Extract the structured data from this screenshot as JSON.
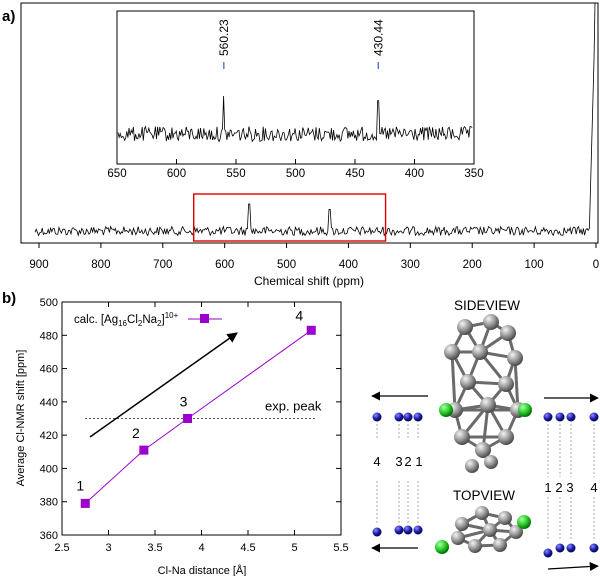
{
  "panel_labels": {
    "a": "a)",
    "b": "b)"
  },
  "chart_data": [
    {
      "id": "spectrum_a",
      "type": "line",
      "title": "",
      "xlabel": "Chemical shift (ppm)",
      "ylabel": "",
      "xlim": [
        900,
        0
      ],
      "x_ticks": [
        900,
        800,
        700,
        600,
        500,
        400,
        300,
        200,
        100,
        0
      ],
      "highlight_range_ppm": [
        650,
        340
      ],
      "peaks": [
        {
          "x": 560.23,
          "relative_height": 1.0
        },
        {
          "x": 430.44,
          "relative_height": 0.9
        }
      ],
      "note": "noisy NMR spectrum; steep rise near 0 ppm",
      "inset": {
        "xlim": [
          650,
          350
        ],
        "x_ticks": [
          650,
          600,
          550,
          500,
          450,
          400,
          350
        ],
        "peak_labels": [
          {
            "x": 560.23,
            "label": "560.23"
          },
          {
            "x": 430.44,
            "label": "430.44"
          }
        ]
      }
    },
    {
      "id": "plot_b",
      "type": "line",
      "xlabel": "Cl-Na distance [Å]",
      "ylabel": "Average Cl-NMR shift [ppm]",
      "xlim": [
        2.5,
        5.5
      ],
      "ylim": [
        360,
        500
      ],
      "x_ticks": [
        2.5,
        3,
        3.5,
        4,
        4.5,
        5,
        5.5
      ],
      "y_ticks": [
        360,
        380,
        400,
        420,
        440,
        460,
        480,
        500
      ],
      "series": [
        {
          "name": "calc. [Ag16Cl2Na2]10+",
          "color": "#9b00cc",
          "x": [
            2.75,
            3.38,
            3.85,
            5.18
          ],
          "y": [
            379,
            411,
            430,
            483
          ],
          "point_labels": [
            "1",
            "2",
            "3",
            "4"
          ]
        }
      ],
      "reference_line": {
        "y": 430,
        "label": "exp. peak"
      },
      "legend": {
        "placement": "top-left",
        "prefix": "calc. [Ag",
        "sub1": "16",
        "mid1": "Cl",
        "sub2": "2",
        "mid2": "Na",
        "sub3": "2",
        "close": "]",
        "sup": "10+"
      }
    }
  ],
  "structure": {
    "sideview_label": "SIDEVIEW",
    "topview_label": "TOPVIEW",
    "left_numbers": [
      "4",
      "3",
      "2",
      "1"
    ],
    "right_numbers": [
      "1",
      "2",
      "3",
      "4"
    ],
    "colors": {
      "silver": "#8a8a8a",
      "chlorine": "#22cc22",
      "sodium": "#1a1aa8"
    }
  }
}
